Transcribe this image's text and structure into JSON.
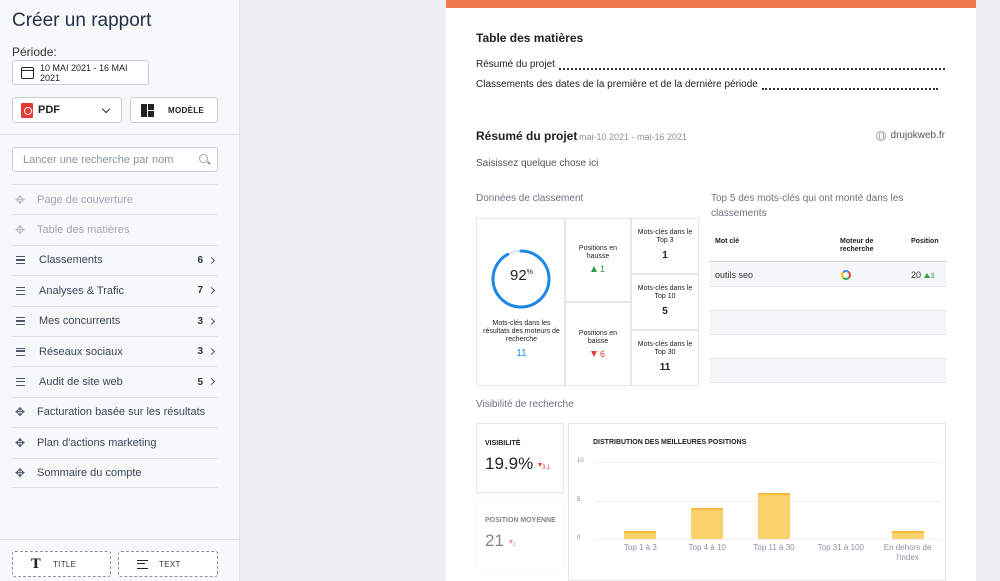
{
  "sidebar": {
    "title": "Créer un rapport",
    "period_label": "Période:",
    "date_range": "10 MAI 2021 - 16 MAI 2021",
    "format_label": "PDF",
    "template_label": "MODÈLE",
    "search_placeholder": "Lancer une recherche par nom",
    "items": [
      {
        "label": "Page de couverture",
        "icon": "move-icon"
      },
      {
        "label": "Table des matières",
        "icon": "move-icon"
      },
      {
        "label": "Classements",
        "count": "6",
        "icon": "list-icon"
      },
      {
        "label": "Analyses & Trafic",
        "count": "7",
        "icon": "list-icon"
      },
      {
        "label": "Mes concurrents",
        "count": "3",
        "icon": "list-icon"
      },
      {
        "label": "Réseaux sociaux",
        "count": "3",
        "icon": "list-icon"
      },
      {
        "label": "Audit de site web",
        "count": "5",
        "icon": "list-icon"
      },
      {
        "label": "Facturation basée sur les résultats",
        "icon": "move-icon"
      },
      {
        "label": "Plan d'actions marketing",
        "icon": "move-icon"
      },
      {
        "label": "Sommaire du compte",
        "icon": "move-icon"
      }
    ],
    "add_title_label": "TITLE",
    "add_text_label": "TEXT"
  },
  "document": {
    "accent_color": "#f07a4a",
    "toc": {
      "title": "Table des matières",
      "entries": [
        "Résumé du projet",
        "Classements des dates de la première et de la dernière période"
      ]
    },
    "summary": {
      "title": "Résumé du projet",
      "dates": "mai-10 2021 - mai-16 2021",
      "domain": "drujokweb.fr",
      "placeholder": "Saisissez quelque chose ici"
    },
    "ranking": {
      "label": "Données de classement",
      "gauge_value": "92",
      "gauge_unit": "%",
      "gauge_fraction": 0.92,
      "gauge_caption": "Mots-clés dans les résultats des moteurs de recherche",
      "gauge_count": "11",
      "up_label": "Positions en hausse",
      "up_value": "1",
      "down_label": "Positions en baisse",
      "down_value": "6",
      "top3_label": "Mots-clés dans le Top 3",
      "top3_value": "1",
      "top10_label": "Mots-clés dans le Top 10",
      "top10_value": "5",
      "top30_label": "Mots-clés dans le Top 30",
      "top30_value": "11"
    },
    "top_keywords": {
      "label": "Top 5 des mots-clés qui ont monté dans les classements",
      "col_keyword": "Mot clé",
      "col_engine": "Moteur de recherche",
      "col_position": "Position",
      "rows": [
        {
          "keyword": "outils seo",
          "engine": "google-icon",
          "position": "20",
          "change": "3"
        }
      ]
    },
    "visibility": {
      "label": "Visibilité de recherche",
      "vis_title": "VISIBILITÉ",
      "vis_value": "19.9%",
      "vis_change": "3.1",
      "avg_title": "POSITION MOYENNE",
      "avg_value": "21",
      "avg_change": "1"
    }
  },
  "chart_data": {
    "type": "bar",
    "title": "DISTRIBUTION DES MEILLEURES POSITIONS",
    "categories": [
      "Top 1 à 3",
      "Top 4 à 10",
      "Top 11 à 30",
      "Top 31 à 100",
      "En dehors de l'index"
    ],
    "values": [
      1,
      4,
      6,
      0,
      1
    ],
    "ylim": [
      0,
      10
    ],
    "yticks": [
      "0",
      "5",
      "10"
    ],
    "bar_color": "#fcd06a"
  }
}
